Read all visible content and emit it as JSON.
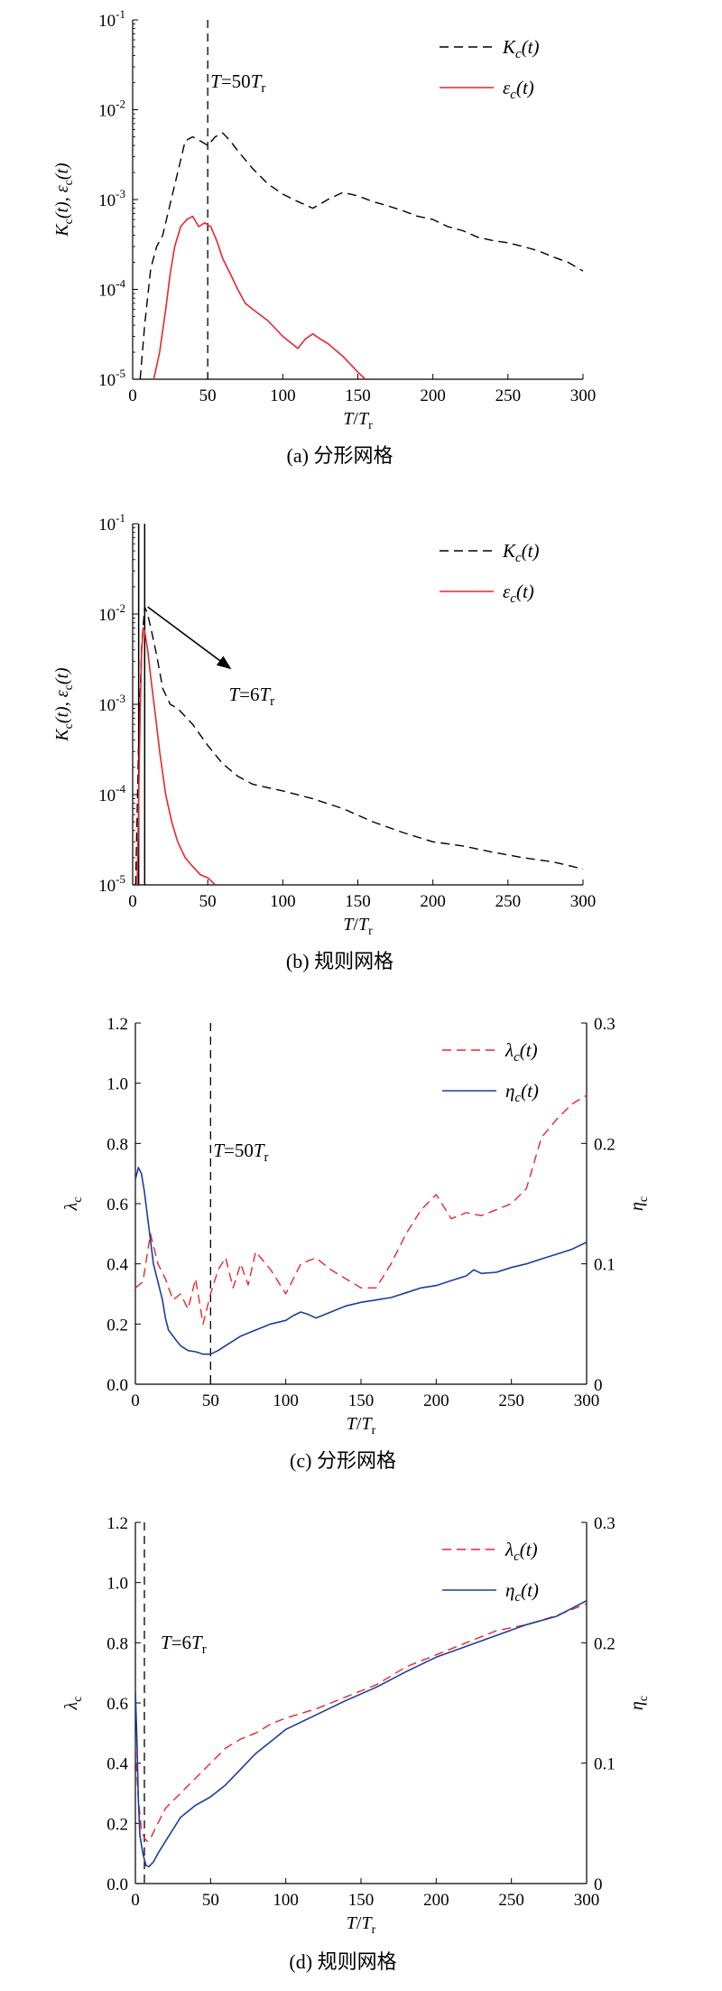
{
  "chart_data": [
    {
      "type": "line",
      "caption": "(a) 分形网格",
      "xlabel": "T/Tr",
      "ylabel": "Kc(t), εc(t)",
      "xlim": [
        0,
        300
      ],
      "ylim": [
        1e-05,
        0.1
      ],
      "yscale": "log",
      "xticks": [
        0,
        50,
        100,
        150,
        200,
        250,
        300
      ],
      "yticks": [
        1e-05,
        0.0001,
        0.001,
        0.01,
        0.1
      ],
      "legend_position": "top-right",
      "series": [
        {
          "name": "Kc(t)",
          "color": "#000000",
          "style": "dashed",
          "x": [
            5,
            8,
            12,
            16,
            20,
            25,
            30,
            35,
            40,
            45,
            50,
            55,
            60,
            65,
            70,
            80,
            90,
            100,
            110,
            120,
            130,
            140,
            150,
            160,
            170,
            180,
            190,
            200,
            210,
            220,
            230,
            240,
            250,
            260,
            270,
            280,
            290,
            300
          ],
          "y": [
            1e-05,
            4e-05,
            0.00017,
            0.0003,
            0.0004,
            0.0009,
            0.002,
            0.0045,
            0.005,
            0.0045,
            0.004,
            0.005,
            0.0055,
            0.0045,
            0.0035,
            0.0022,
            0.0015,
            0.00115,
            0.00095,
            0.0008,
            0.001,
            0.0012,
            0.0011,
            0.00095,
            0.00085,
            0.00075,
            0.00065,
            0.0006,
            0.0005,
            0.00045,
            0.00038,
            0.00035,
            0.00033,
            0.0003,
            0.00027,
            0.00023,
            0.0002,
            0.00016
          ]
        },
        {
          "name": "εc(t)",
          "color": "#e8262f",
          "style": "solid",
          "x": [
            14,
            18,
            22,
            25,
            28,
            32,
            36,
            40,
            44,
            48,
            52,
            56,
            60,
            65,
            70,
            75,
            80,
            90,
            100,
            110,
            115,
            120,
            125,
            130,
            140,
            150,
            155
          ],
          "y": [
            1e-05,
            2e-05,
            6e-05,
            0.00015,
            0.0003,
            0.0005,
            0.0006,
            0.00065,
            0.0005,
            0.00055,
            0.0005,
            0.00035,
            0.00022,
            0.00015,
            0.0001,
            7e-05,
            6e-05,
            4.5e-05,
            3e-05,
            2.2e-05,
            2.8e-05,
            3.2e-05,
            2.8e-05,
            2.5e-05,
            1.8e-05,
            1.2e-05,
            1e-05
          ]
        }
      ],
      "annotations": [
        {
          "text": "T=50Tr",
          "vline_x": 50
        }
      ]
    },
    {
      "type": "line",
      "caption": "(b) 规则网格",
      "xlabel": "T/Tr",
      "ylabel": "Kc(t), εc(t)",
      "xlim": [
        0,
        300
      ],
      "ylim": [
        1e-05,
        0.1
      ],
      "yscale": "log",
      "xticks": [
        0,
        50,
        100,
        150,
        200,
        250,
        300
      ],
      "yticks": [
        1e-05,
        0.0001,
        0.001,
        0.01,
        0.1
      ],
      "legend_position": "top-right",
      "series": [
        {
          "name": "Kc(t)",
          "color": "#000000",
          "style": "dashed",
          "x": [
            2,
            4,
            6,
            8,
            10,
            13,
            16,
            20,
            25,
            30,
            40,
            50,
            60,
            70,
            80,
            100,
            120,
            140,
            160,
            180,
            200,
            220,
            240,
            260,
            280,
            300
          ],
          "y": [
            1e-05,
            0.0004,
            0.0045,
            0.012,
            0.01,
            0.006,
            0.0035,
            0.0015,
            0.001,
            0.0009,
            0.0006,
            0.00035,
            0.00022,
            0.00016,
            0.00013,
            0.00011,
            9e-05,
            7e-05,
            5e-05,
            3.8e-05,
            3e-05,
            2.7e-05,
            2.3e-05,
            2e-05,
            1.8e-05,
            1.5e-05
          ]
        },
        {
          "name": "εc(t)",
          "color": "#e8262f",
          "style": "solid",
          "x": [
            3,
            5,
            6,
            7,
            8,
            10,
            12,
            15,
            18,
            22,
            26,
            30,
            35,
            40,
            45,
            50,
            55
          ],
          "y": [
            1e-05,
            0.0008,
            0.004,
            0.007,
            0.0065,
            0.004,
            0.002,
            0.0008,
            0.0003,
            0.0001,
            5e-05,
            3e-05,
            2e-05,
            1.6e-05,
            1.3e-05,
            1.2e-05,
            1e-05
          ]
        }
      ],
      "annotations": [
        {
          "text": "T=6Tr",
          "vline_x": 6
        }
      ]
    },
    {
      "type": "line",
      "caption": "(c) 分形网格",
      "xlabel": "T/Tr",
      "ylabel": "λc",
      "y2label": "ηc",
      "xlim": [
        0,
        300
      ],
      "ylim": [
        0,
        1.2
      ],
      "y2lim": [
        0,
        0.3
      ],
      "xticks": [
        0,
        50,
        100,
        150,
        200,
        250,
        300
      ],
      "yticks": [
        0,
        0.2,
        0.4,
        0.6,
        0.8,
        1.0,
        1.2
      ],
      "y2ticks": [
        0,
        0.1,
        0.2,
        0.3
      ],
      "legend_position": "top-right",
      "series": [
        {
          "name": "λc(t)",
          "axis": "left",
          "color": "#e8262f",
          "style": "dashed",
          "x": [
            0,
            5,
            10,
            15,
            20,
            25,
            30,
            35,
            40,
            45,
            50,
            55,
            60,
            65,
            70,
            75,
            80,
            90,
            100,
            110,
            120,
            130,
            140,
            150,
            160,
            170,
            180,
            190,
            200,
            210,
            220,
            230,
            240,
            250,
            260,
            270,
            280,
            290,
            300
          ],
          "y": [
            0.32,
            0.34,
            0.5,
            0.4,
            0.35,
            0.28,
            0.3,
            0.25,
            0.35,
            0.2,
            0.3,
            0.38,
            0.42,
            0.32,
            0.4,
            0.33,
            0.44,
            0.38,
            0.3,
            0.4,
            0.42,
            0.38,
            0.35,
            0.32,
            0.32,
            0.4,
            0.5,
            0.58,
            0.63,
            0.55,
            0.57,
            0.56,
            0.58,
            0.6,
            0.65,
            0.82,
            0.88,
            0.93,
            0.96
          ]
        },
        {
          "name": "ηc(t)",
          "axis": "right",
          "color": "#1c3e9c",
          "style": "solid",
          "x": [
            0,
            2,
            4,
            6,
            8,
            10,
            12,
            15,
            18,
            20,
            22,
            25,
            28,
            30,
            35,
            40,
            45,
            50,
            55,
            60,
            70,
            80,
            90,
            100,
            105,
            110,
            115,
            120,
            130,
            140,
            150,
            160,
            170,
            180,
            190,
            200,
            210,
            220,
            225,
            230,
            240,
            250,
            260,
            270,
            280,
            290,
            300
          ],
          "y": [
            0.17,
            0.18,
            0.175,
            0.16,
            0.14,
            0.12,
            0.1,
            0.085,
            0.07,
            0.055,
            0.045,
            0.04,
            0.035,
            0.032,
            0.028,
            0.027,
            0.025,
            0.025,
            0.028,
            0.032,
            0.04,
            0.045,
            0.05,
            0.053,
            0.057,
            0.06,
            0.058,
            0.055,
            0.06,
            0.065,
            0.068,
            0.07,
            0.072,
            0.076,
            0.08,
            0.082,
            0.086,
            0.09,
            0.095,
            0.092,
            0.093,
            0.097,
            0.1,
            0.104,
            0.108,
            0.112,
            0.118
          ]
        }
      ],
      "annotations": [
        {
          "text": "T=50Tr",
          "vline_x": 50
        }
      ]
    },
    {
      "type": "line",
      "caption": "(d) 规则网格",
      "xlabel": "T/Tr",
      "ylabel": "λc",
      "y2label": "ηc",
      "xlim": [
        0,
        300
      ],
      "ylim": [
        0,
        1.2
      ],
      "y2lim": [
        0,
        0.3
      ],
      "xticks": [
        0,
        50,
        100,
        150,
        200,
        250,
        300
      ],
      "yticks": [
        0,
        0.2,
        0.4,
        0.6,
        0.8,
        1.0,
        1.2
      ],
      "y2ticks": [
        0,
        0.1,
        0.2,
        0.3
      ],
      "legend_position": "top-right",
      "series": [
        {
          "name": "λc(t)",
          "axis": "left",
          "color": "#e8262f",
          "style": "dashed",
          "x": [
            0,
            2,
            4,
            6,
            8,
            10,
            15,
            20,
            30,
            40,
            50,
            60,
            70,
            80,
            90,
            100,
            120,
            140,
            160,
            180,
            200,
            220,
            240,
            260,
            280,
            300
          ],
          "y": [
            0.45,
            0.28,
            0.18,
            0.15,
            0.14,
            0.15,
            0.2,
            0.25,
            0.3,
            0.35,
            0.4,
            0.45,
            0.48,
            0.5,
            0.53,
            0.55,
            0.58,
            0.62,
            0.66,
            0.72,
            0.76,
            0.8,
            0.84,
            0.86,
            0.89,
            0.93
          ]
        },
        {
          "name": "ηc(t)",
          "axis": "right",
          "color": "#1c3e9c",
          "style": "solid",
          "x": [
            0,
            1,
            2,
            3,
            5,
            7,
            9,
            12,
            15,
            20,
            25,
            30,
            40,
            50,
            60,
            70,
            80,
            90,
            100,
            120,
            140,
            160,
            180,
            200,
            220,
            240,
            260,
            280,
            300
          ],
          "y": [
            0.16,
            0.12,
            0.07,
            0.04,
            0.025,
            0.015,
            0.014,
            0.018,
            0.025,
            0.035,
            0.045,
            0.055,
            0.065,
            0.072,
            0.082,
            0.095,
            0.108,
            0.118,
            0.128,
            0.14,
            0.152,
            0.163,
            0.176,
            0.188,
            0.197,
            0.206,
            0.215,
            0.222,
            0.235
          ]
        }
      ],
      "annotations": [
        {
          "text": "T=6Tr",
          "vline_x": 6
        }
      ]
    }
  ],
  "colors": {
    "kc": "#000000",
    "epsilon": "#e8262f",
    "lambda": "#e8262f",
    "eta": "#1c3e9c"
  }
}
